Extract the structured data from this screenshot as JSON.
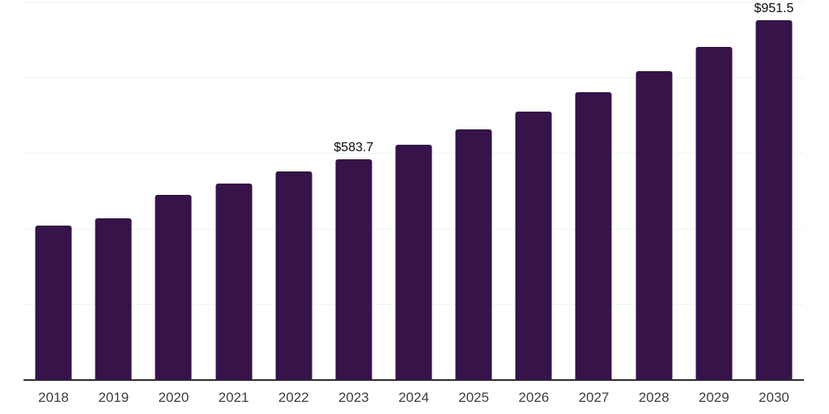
{
  "chart": {
    "background": "#ffffff",
    "bar_color": "#361349",
    "grid_color": "#f2f2f4",
    "axis_line_color": "#2b2b2b",
    "tick_label_color": "#3d3d3d",
    "value_label_color": "#0a0a0a"
  },
  "chart_data": {
    "type": "bar",
    "title": "",
    "xlabel": "",
    "ylabel": "",
    "categories": [
      "2018",
      "2019",
      "2020",
      "2021",
      "2022",
      "2023",
      "2024",
      "2025",
      "2026",
      "2027",
      "2028",
      "2029",
      "2030"
    ],
    "values": [
      408.4,
      427.5,
      488.3,
      520.3,
      551.2,
      583.7,
      622.6,
      663.1,
      710.0,
      761.2,
      816.6,
      880.6,
      951.5
    ],
    "value_labels": [
      {
        "category": "2023",
        "text": "$583.7"
      },
      {
        "category": "2030",
        "text": "$951.5"
      }
    ],
    "ylim": [
      0,
      1000
    ],
    "gridline_values": [
      200,
      400,
      600,
      800,
      1000
    ],
    "grid": "horizontal",
    "y_axis_ticks_visible": false,
    "legend_position": "none"
  }
}
